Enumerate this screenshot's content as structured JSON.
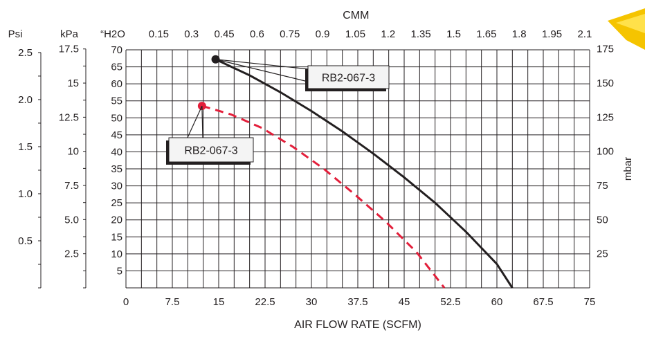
{
  "chart_data": {
    "type": "line",
    "xlabel": "AIR FLOW RATE (SCFM)",
    "x_top_label": "CMM",
    "x_ticks": [
      "0",
      "7.5",
      "15",
      "22.5",
      "30",
      "37.5",
      "45",
      "52.5",
      "60",
      "67.5",
      "75"
    ],
    "x_top_ticks": [
      "0.15",
      "0.3",
      "0.45",
      "0.6",
      "0.75",
      "0.9",
      "1.05",
      "1.2",
      "1.35",
      "1.5",
      "1.65",
      "1.8",
      "1.95",
      "2.1"
    ],
    "xlim": [
      0,
      75
    ],
    "ylim": [
      0,
      70
    ],
    "y_axes": {
      "psi": {
        "unit": "Psi",
        "ticks": [
          "2.5",
          "2.0",
          "1.5",
          "1.0",
          "0.5"
        ],
        "values": [
          2.5,
          2.0,
          1.5,
          1.0,
          0.5
        ]
      },
      "kpa": {
        "unit": "kPa",
        "ticks": [
          "17.5",
          "15",
          "12.5",
          "10",
          "7.5",
          "5.0",
          "2.5"
        ],
        "values": [
          17.5,
          15,
          12.5,
          10,
          7.5,
          5,
          2.5
        ]
      },
      "inh2o": {
        "unit": "“H2O",
        "ticks": [
          "70",
          "65",
          "60",
          "55",
          "50",
          "45",
          "40",
          "35",
          "30",
          "25",
          "20",
          "15",
          "10",
          "5"
        ],
        "values": [
          70,
          65,
          60,
          55,
          50,
          45,
          40,
          35,
          30,
          25,
          20,
          15,
          10,
          5
        ]
      },
      "mbar": {
        "unit": "mbar",
        "ticks": [
          "175",
          "150",
          "125",
          "100",
          "75",
          "50",
          "25"
        ],
        "values": [
          175,
          150,
          125,
          100,
          75,
          50,
          25
        ]
      }
    },
    "series": [
      {
        "name": "RB2-067-3",
        "style": "solid",
        "color": "#231f20",
        "points": [
          [
            14.5,
            67.2
          ],
          [
            20,
            62.5
          ],
          [
            25,
            57.5
          ],
          [
            30,
            52
          ],
          [
            35,
            46
          ],
          [
            40,
            39.5
          ],
          [
            45,
            32.5
          ],
          [
            50,
            25
          ],
          [
            55,
            16.5
          ],
          [
            60,
            7
          ],
          [
            62.5,
            0
          ]
        ]
      },
      {
        "name": "RB2-067-3",
        "style": "dashed",
        "color": "#e31e3a",
        "points": [
          [
            12.3,
            53.5
          ],
          [
            17,
            51
          ],
          [
            22,
            47
          ],
          [
            27,
            41.5
          ],
          [
            32,
            35
          ],
          [
            37,
            27.5
          ],
          [
            42,
            19.5
          ],
          [
            47,
            10.5
          ],
          [
            51.5,
            0
          ]
        ]
      }
    ],
    "annotations": [
      {
        "text": "RB2-067-3",
        "series": 0
      },
      {
        "text": "RB2-067-3",
        "series": 1
      }
    ],
    "grid": true,
    "legend": "callouts"
  }
}
